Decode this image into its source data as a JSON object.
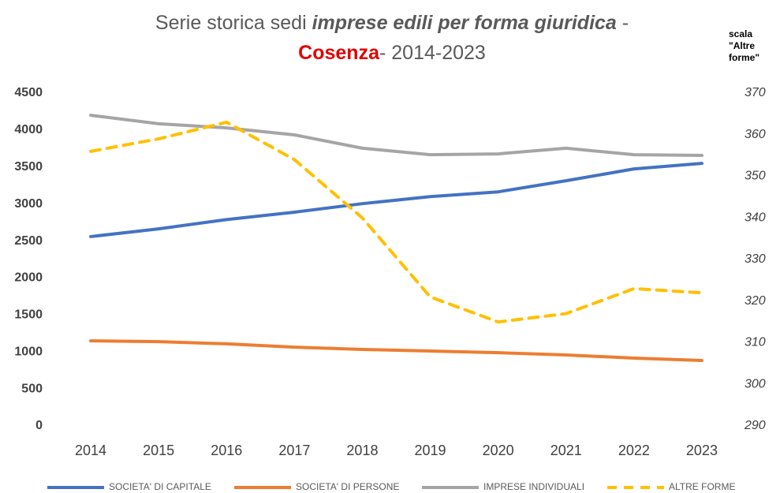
{
  "chart_data": {
    "type": "line",
    "title": [
      "Serie storica sedi",
      "imprese edili per forma giuridica",
      "-",
      "Cosenza",
      "- 2014-2023"
    ],
    "y2_label": "scala \"Altre forme\"",
    "categories": [
      "2014",
      "2015",
      "2016",
      "2017",
      "2018",
      "2019",
      "2020",
      "2021",
      "2022",
      "2023"
    ],
    "series": [
      {
        "name": "SOCIETA' DI CAPITALE",
        "color": "#4472c4",
        "values": [
          2560,
          2665,
          2790,
          2890,
          3005,
          3100,
          3165,
          3315,
          3475,
          3550
        ]
      },
      {
        "name": "SOCIETA' DI PERSONE",
        "color": "#ed7d31",
        "values": [
          1150,
          1140,
          1110,
          1065,
          1035,
          1013,
          990,
          960,
          917,
          885
        ]
      },
      {
        "name": "IMPRESE INDIVIDUALI",
        "color": "#a5a5a5",
        "values": [
          4200,
          4085,
          4030,
          3935,
          3755,
          3667,
          3678,
          3755,
          3667,
          3657
        ]
      },
      {
        "name": "ALTRE FORME",
        "color": "#ffc000",
        "axis": "y2",
        "dashed": true,
        "values": [
          356,
          359,
          363,
          354,
          340,
          321,
          315,
          317,
          323,
          322
        ]
      }
    ],
    "ylim": [
      0,
      4500
    ],
    "yticks": [
      0,
      500,
      1000,
      1500,
      2000,
      2500,
      3000,
      3500,
      4000,
      4500
    ],
    "y2lim": [
      290,
      370
    ],
    "y2ticks": [
      290,
      300,
      310,
      320,
      330,
      340,
      350,
      360,
      370
    ],
    "grid": false,
    "legend": "bottom"
  }
}
